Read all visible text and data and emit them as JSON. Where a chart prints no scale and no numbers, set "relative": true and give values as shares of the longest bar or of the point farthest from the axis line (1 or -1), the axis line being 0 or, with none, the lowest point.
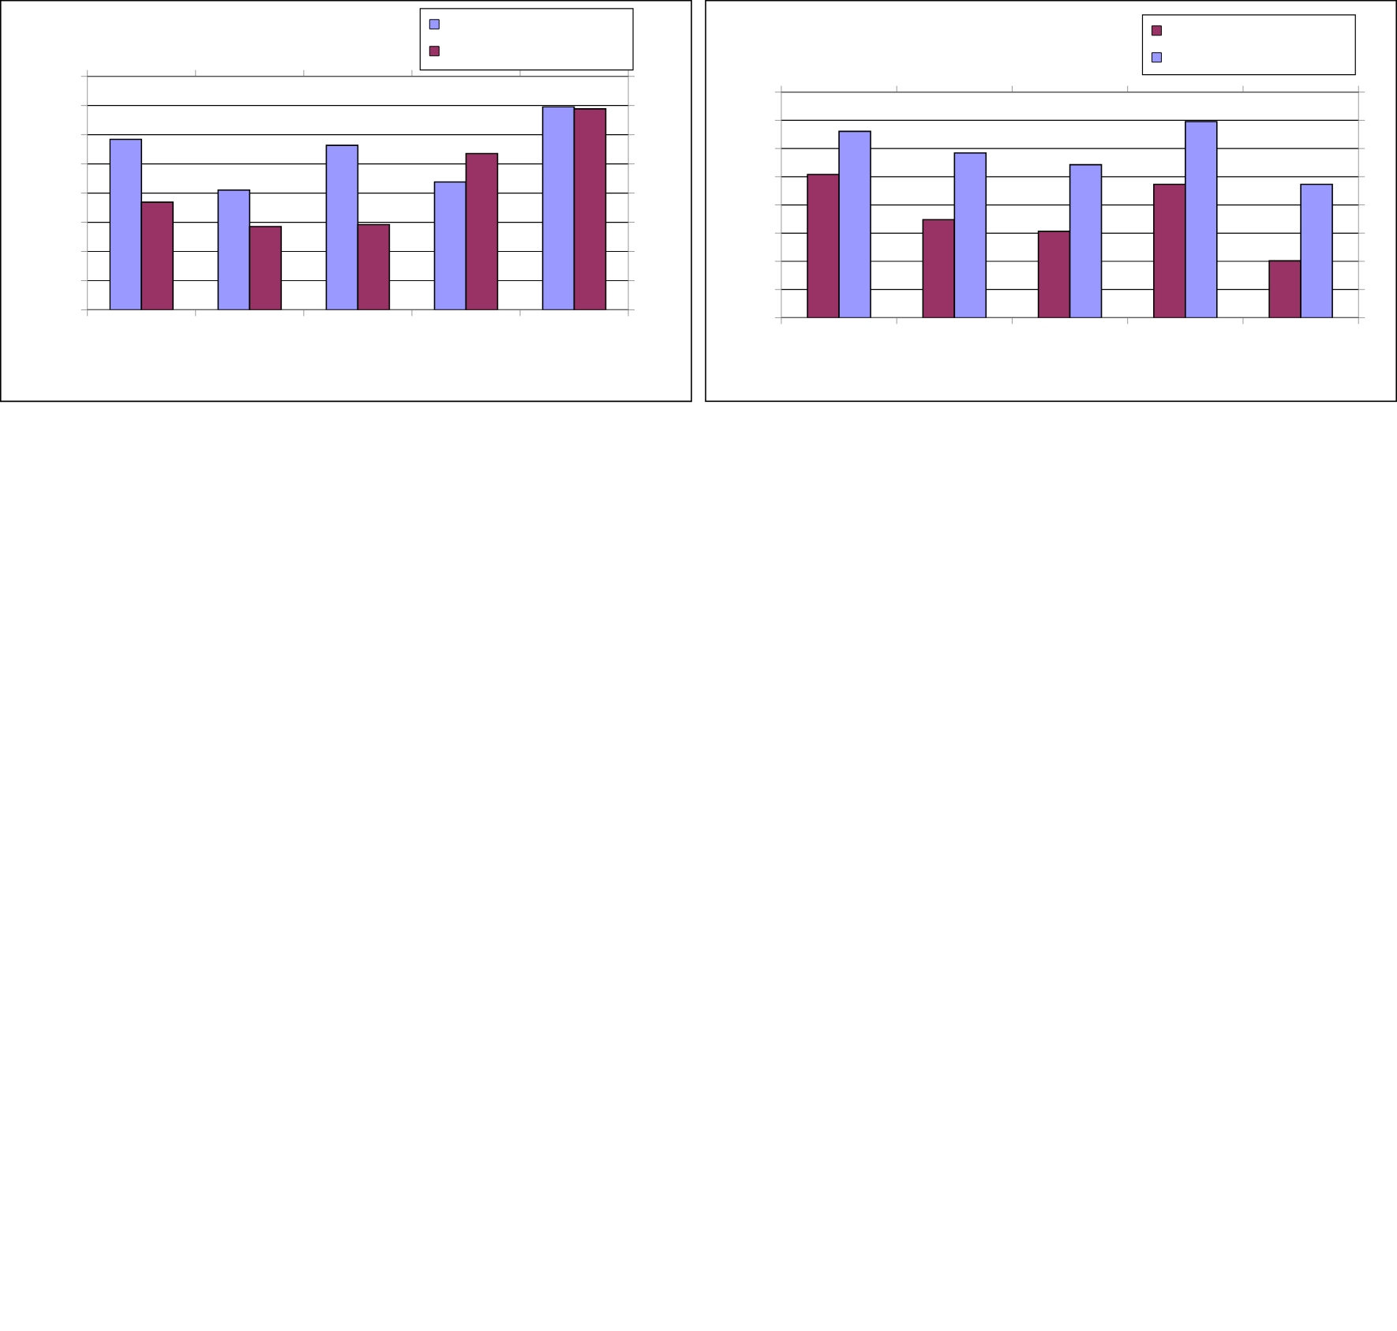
{
  "chart_data": [
    {
      "type": "bar",
      "relative": true,
      "categories": [
        null,
        null,
        null,
        null,
        null
      ],
      "grid": "y",
      "series": [
        {
          "color": "#9999ff",
          "values": [
            0.84,
            0.59,
            0.81,
            0.63,
            1.0
          ]
        },
        {
          "color": "#993366",
          "values": [
            0.53,
            0.41,
            0.42,
            0.77,
            0.99
          ]
        }
      ]
    },
    {
      "type": "bar",
      "relative": true,
      "categories": [
        null,
        null,
        null,
        null,
        null
      ],
      "grid": "y",
      "series": [
        {
          "color": "#993366",
          "values": [
            0.73,
            0.5,
            0.44,
            0.68,
            0.29
          ]
        },
        {
          "color": "#9999ff",
          "values": [
            0.95,
            0.84,
            0.78,
            1.0,
            0.68
          ]
        }
      ]
    }
  ]
}
